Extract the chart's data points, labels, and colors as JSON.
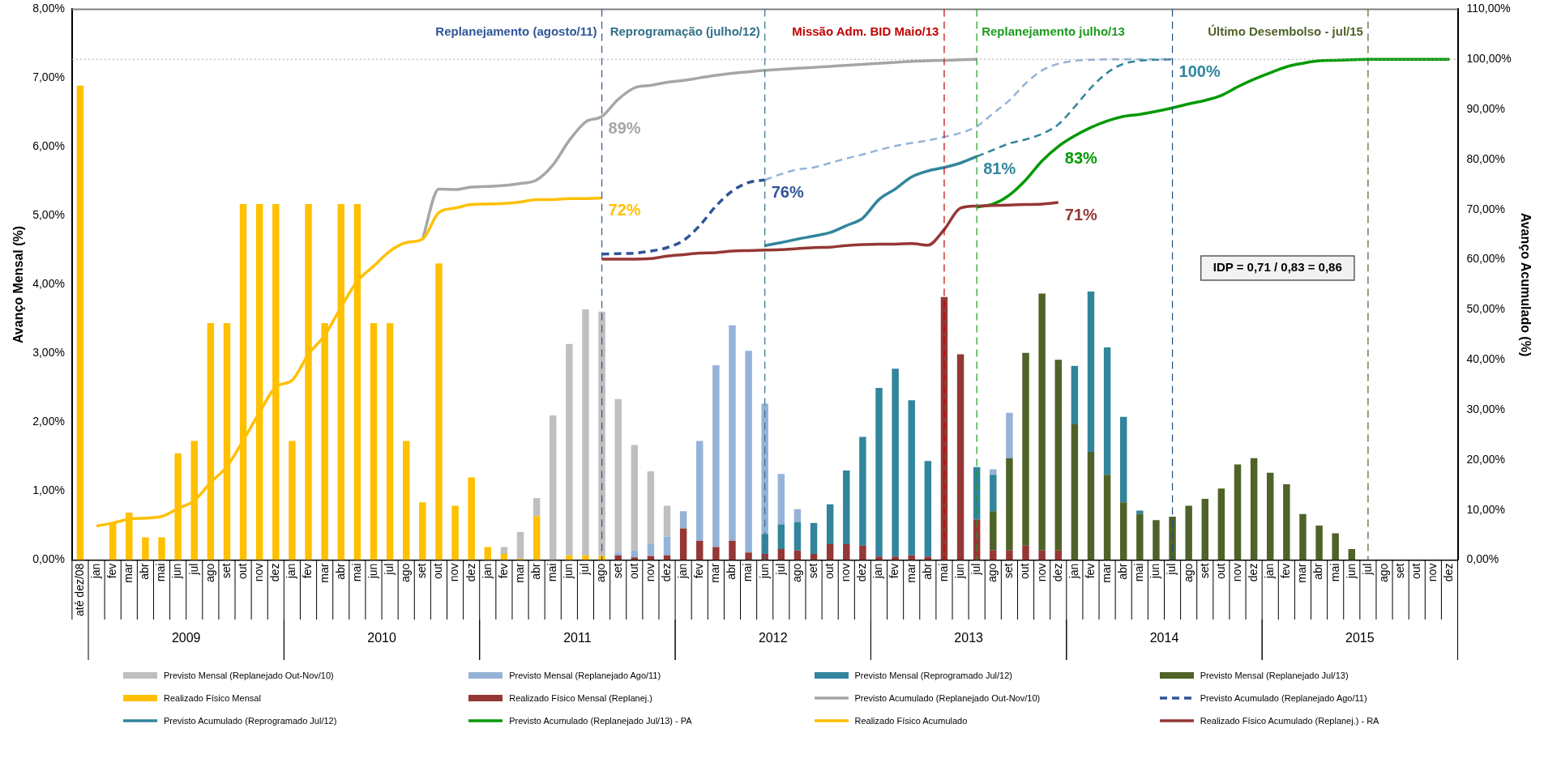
{
  "chart_data": {
    "type": "bar",
    "stacked": true,
    "ylabel": "Avanço Mensal (%)",
    "y2label": "Avanço Acumulado (%)",
    "ylim": [
      0,
      8
    ],
    "yticks": [
      {
        "value": 0,
        "label": "0,00%"
      },
      {
        "value": 1,
        "label": "1,00%"
      },
      {
        "value": 2,
        "label": "2,00%"
      },
      {
        "value": 3,
        "label": "3,00%"
      },
      {
        "value": 4,
        "label": "4,00%"
      },
      {
        "value": 5,
        "label": "5,00%"
      },
      {
        "value": 6,
        "label": "6,00%"
      },
      {
        "value": 7,
        "label": "7,00%"
      },
      {
        "value": 8,
        "label": "8,00%"
      }
    ],
    "y2lim": [
      0,
      110
    ],
    "y2ticks": [
      {
        "value": 0,
        "label": "0,00%"
      },
      {
        "value": 10,
        "label": "10,00%"
      },
      {
        "value": 20,
        "label": "20,00%"
      },
      {
        "value": 30,
        "label": "30,00%"
      },
      {
        "value": 40,
        "label": "40,00%"
      },
      {
        "value": 50,
        "label": "50,00%"
      },
      {
        "value": 60,
        "label": "60,00%"
      },
      {
        "value": 70,
        "label": "70,00%"
      },
      {
        "value": 80,
        "label": "80,00%"
      },
      {
        "value": 90,
        "label": "90,00%"
      },
      {
        "value": 100,
        "label": "100,00%"
      },
      {
        "value": 110,
        "label": "110,00%"
      }
    ],
    "xlim": [
      "2008-11-16",
      "2015-12-16"
    ],
    "x": [
      "2008-12",
      "2009-01",
      "2009-02",
      "2009-03",
      "2009-04",
      "2009-05",
      "2009-06",
      "2009-07",
      "2009-08",
      "2009-09",
      "2009-10",
      "2009-11",
      "2009-12",
      "2010-01",
      "2010-02",
      "2010-03",
      "2010-04",
      "2010-05",
      "2010-06",
      "2010-07",
      "2010-08",
      "2010-09",
      "2010-10",
      "2010-11",
      "2010-12",
      "2011-01",
      "2011-02",
      "2011-03",
      "2011-04",
      "2011-05",
      "2011-06",
      "2011-07",
      "2011-08",
      "2011-09",
      "2011-10",
      "2011-11",
      "2011-12",
      "2012-01",
      "2012-02",
      "2012-03",
      "2012-04",
      "2012-05",
      "2012-06",
      "2012-07",
      "2012-08",
      "2012-09",
      "2012-10",
      "2012-11",
      "2012-12",
      "2013-01",
      "2013-02",
      "2013-03",
      "2013-04",
      "2013-05",
      "2013-06",
      "2013-07",
      "2013-08",
      "2013-09",
      "2013-10",
      "2013-11",
      "2013-12",
      "2014-01",
      "2014-02",
      "2014-03",
      "2014-04",
      "2014-05",
      "2014-06",
      "2014-07",
      "2014-08",
      "2014-09",
      "2014-10",
      "2014-11",
      "2014-12",
      "2015-01",
      "2015-02",
      "2015-03",
      "2015-04",
      "2015-05",
      "2015-06"
    ],
    "xticks": [
      {
        "value": "2008-12",
        "label": "até dez/08"
      },
      {
        "value": "2009-01",
        "label": "jan"
      },
      {
        "value": "2009-02",
        "label": "fev"
      },
      {
        "value": "2009-03",
        "label": "mar"
      },
      {
        "value": "2009-04",
        "label": "abr"
      },
      {
        "value": "2009-05",
        "label": "mai"
      },
      {
        "value": "2009-06",
        "label": "jun"
      },
      {
        "value": "2009-07",
        "label": "jul"
      },
      {
        "value": "2009-08",
        "label": "ago"
      },
      {
        "value": "2009-09",
        "label": "set"
      },
      {
        "value": "2009-10",
        "label": "out"
      },
      {
        "value": "2009-11",
        "label": "nov"
      },
      {
        "value": "2009-12",
        "label": "dez"
      },
      {
        "value": "2010-01",
        "label": "jan"
      },
      {
        "value": "2010-02",
        "label": "fev"
      },
      {
        "value": "2010-03",
        "label": "mar"
      },
      {
        "value": "2010-04",
        "label": "abr"
      },
      {
        "value": "2010-05",
        "label": "mai"
      },
      {
        "value": "2010-06",
        "label": "jun"
      },
      {
        "value": "2010-07",
        "label": "jul"
      },
      {
        "value": "2010-08",
        "label": "ago"
      },
      {
        "value": "2010-09",
        "label": "set"
      },
      {
        "value": "2010-10",
        "label": "out"
      },
      {
        "value": "2010-11",
        "label": "nov"
      },
      {
        "value": "2010-12",
        "label": "dez"
      },
      {
        "value": "2011-01",
        "label": "jan"
      },
      {
        "value": "2011-02",
        "label": "fev"
      },
      {
        "value": "2011-03",
        "label": "mar"
      },
      {
        "value": "2011-04",
        "label": "abr"
      },
      {
        "value": "2011-05",
        "label": "mai"
      },
      {
        "value": "2011-06",
        "label": "jun"
      },
      {
        "value": "2011-07",
        "label": "jul"
      },
      {
        "value": "2011-08",
        "label": "ago"
      },
      {
        "value": "2011-09",
        "label": "set"
      },
      {
        "value": "2011-10",
        "label": "out"
      },
      {
        "value": "2011-11",
        "label": "nov"
      },
      {
        "value": "2011-12",
        "label": "dez"
      },
      {
        "value": "2012-01",
        "label": "jan"
      },
      {
        "value": "2012-02",
        "label": "fev"
      },
      {
        "value": "2012-03",
        "label": "mar"
      },
      {
        "value": "2012-04",
        "label": "abr"
      },
      {
        "value": "2012-05",
        "label": "mai"
      },
      {
        "value": "2012-06",
        "label": "jun"
      },
      {
        "value": "2012-07",
        "label": "jul"
      },
      {
        "value": "2012-08",
        "label": "ago"
      },
      {
        "value": "2012-09",
        "label": "set"
      },
      {
        "value": "2012-10",
        "label": "out"
      },
      {
        "value": "2012-11",
        "label": "nov"
      },
      {
        "value": "2012-12",
        "label": "dez"
      },
      {
        "value": "2013-01",
        "label": "jan"
      },
      {
        "value": "2013-02",
        "label": "fev"
      },
      {
        "value": "2013-03",
        "label": "mar"
      },
      {
        "value": "2013-04",
        "label": "abr"
      },
      {
        "value": "2013-05",
        "label": "mai"
      },
      {
        "value": "2013-06",
        "label": "jun"
      },
      {
        "value": "2013-07",
        "label": "jul"
      },
      {
        "value": "2013-08",
        "label": "ago"
      },
      {
        "value": "2013-09",
        "label": "set"
      },
      {
        "value": "2013-10",
        "label": "out"
      },
      {
        "value": "2013-11",
        "label": "nov"
      },
      {
        "value": "2013-12",
        "label": "dez"
      },
      {
        "value": "2014-01",
        "label": "jan"
      },
      {
        "value": "2014-02",
        "label": "fev"
      },
      {
        "value": "2014-03",
        "label": "mar"
      },
      {
        "value": "2014-04",
        "label": "abr"
      },
      {
        "value": "2014-05",
        "label": "mai"
      },
      {
        "value": "2014-06",
        "label": "jun"
      },
      {
        "value": "2014-07",
        "label": "jul"
      },
      {
        "value": "2014-08",
        "label": "ago"
      },
      {
        "value": "2014-09",
        "label": "set"
      },
      {
        "value": "2014-10",
        "label": "out"
      },
      {
        "value": "2014-11",
        "label": "nov"
      },
      {
        "value": "2014-12",
        "label": "dez"
      },
      {
        "value": "2015-01",
        "label": "jan"
      },
      {
        "value": "2015-02",
        "label": "fev"
      },
      {
        "value": "2015-03",
        "label": "mar"
      },
      {
        "value": "2015-04",
        "label": "abr"
      },
      {
        "value": "2015-05",
        "label": "mai"
      },
      {
        "value": "2015-06",
        "label": "jun"
      },
      {
        "value": "2015-07",
        "label": "jul"
      },
      {
        "value": "2015-08",
        "label": "ago"
      },
      {
        "value": "2015-09",
        "label": "set"
      },
      {
        "value": "2015-10",
        "label": "out"
      },
      {
        "value": "2015-11",
        "label": "nov"
      },
      {
        "value": "2015-12",
        "label": "dez"
      }
    ],
    "series": [
      {
        "name": "Realizado Físico Mensal (Replanej.)",
        "color": "#953735",
        "values": [
          null,
          null,
          null,
          null,
          null,
          null,
          null,
          null,
          null,
          null,
          null,
          null,
          null,
          null,
          null,
          null,
          null,
          null,
          null,
          null,
          null,
          null,
          null,
          null,
          null,
          null,
          null,
          null,
          null,
          null,
          null,
          null,
          null,
          0.07,
          0.04,
          0.06,
          0.07,
          0.46,
          0.28,
          0.19,
          0.28,
          0.11,
          0.09,
          0.16,
          0.14,
          0.09,
          0.23,
          0.23,
          0.21,
          0.05,
          0.05,
          0.07,
          0.05,
          3.82,
          2.99,
          0.59,
          0.14,
          0.14,
          0.21,
          0.14,
          0.14,
          null,
          null,
          null,
          null,
          null,
          null,
          null,
          null,
          null,
          null,
          null,
          null,
          null,
          null,
          null,
          null,
          null,
          null
        ]
      },
      {
        "name": "Realizado Físico Mensal",
        "color": "#ffc000",
        "values": [
          6.89,
          null,
          0.54,
          0.69,
          0.33,
          0.33,
          1.55,
          1.73,
          3.44,
          3.44,
          5.17,
          5.17,
          5.17,
          1.73,
          5.17,
          3.44,
          5.17,
          5.17,
          3.44,
          3.44,
          1.73,
          0.84,
          4.31,
          0.79,
          1.2,
          0.19,
          0.09,
          0.02,
          0.64,
          null,
          0.07,
          0.07,
          0.06,
          null,
          null,
          null,
          null,
          null,
          null,
          null,
          null,
          null,
          null,
          null,
          null,
          null,
          null,
          null,
          null,
          null,
          null,
          null,
          null,
          null,
          null,
          null,
          null,
          null,
          null,
          null,
          null,
          null,
          null,
          null,
          null,
          null,
          null,
          null,
          null,
          null,
          null,
          null,
          null,
          null,
          null,
          null,
          null,
          null,
          null
        ]
      },
      {
        "name": "Previsto Mensal (Replanejado Jul/13)",
        "color": "#4f6228",
        "values": [
          null,
          null,
          null,
          null,
          null,
          null,
          null,
          null,
          null,
          null,
          null,
          null,
          null,
          null,
          null,
          null,
          null,
          null,
          null,
          null,
          null,
          null,
          null,
          null,
          null,
          null,
          null,
          null,
          null,
          null,
          null,
          null,
          null,
          null,
          null,
          null,
          null,
          null,
          null,
          null,
          null,
          null,
          null,
          null,
          null,
          null,
          null,
          null,
          null,
          null,
          null,
          null,
          null,
          null,
          null,
          null,
          0.57,
          1.34,
          2.8,
          3.73,
          2.77,
          1.97,
          1.57,
          1.24,
          0.84,
          0.67,
          0.58,
          0.63,
          0.79,
          0.89,
          1.04,
          1.39,
          1.48,
          1.27,
          1.1,
          0.67,
          0.5,
          0.39,
          0.16
        ]
      },
      {
        "name": "Previsto Mensal (Reprogramado Jul/12)",
        "color": "#31859c",
        "values": [
          null,
          null,
          null,
          null,
          null,
          null,
          null,
          null,
          null,
          null,
          null,
          null,
          null,
          null,
          null,
          null,
          null,
          null,
          null,
          null,
          null,
          null,
          null,
          null,
          null,
          null,
          null,
          null,
          null,
          null,
          null,
          null,
          null,
          null,
          null,
          null,
          null,
          null,
          null,
          null,
          null,
          null,
          0.29,
          0.36,
          0.41,
          0.45,
          0.58,
          1.07,
          1.58,
          2.45,
          2.73,
          2.25,
          1.39,
          null,
          null,
          0.76,
          0.53,
          null,
          null,
          null,
          null,
          0.85,
          2.33,
          1.85,
          1.24,
          0.05,
          null,
          null,
          null,
          null,
          null,
          null,
          null,
          null,
          null,
          null,
          null,
          null,
          null
        ]
      },
      {
        "name": "Previsto Mensal (Replanejado Ago/11)",
        "color": "#95b3d7",
        "values": [
          null,
          null,
          null,
          null,
          null,
          null,
          null,
          null,
          null,
          null,
          null,
          null,
          null,
          null,
          null,
          null,
          null,
          null,
          null,
          null,
          null,
          null,
          null,
          null,
          null,
          null,
          null,
          null,
          null,
          null,
          null,
          null,
          null,
          0.04,
          0.1,
          0.17,
          0.27,
          0.25,
          1.45,
          2.64,
          3.13,
          2.93,
          1.89,
          0.73,
          0.19,
          null,
          null,
          null,
          null,
          null,
          null,
          null,
          null,
          null,
          null,
          null,
          0.08,
          0.66,
          null,
          null,
          null,
          null,
          null,
          null,
          null,
          null,
          null,
          null,
          null,
          null,
          null,
          null,
          null,
          null,
          null,
          null,
          null,
          null,
          null
        ]
      },
      {
        "name": "Previsto Mensal (Replanejado Out-Nov/10)",
        "color": "#bfbfbf",
        "values": [
          null,
          null,
          null,
          null,
          null,
          null,
          null,
          null,
          null,
          null,
          null,
          null,
          null,
          null,
          null,
          null,
          null,
          null,
          null,
          null,
          null,
          null,
          null,
          null,
          null,
          null,
          0.1,
          0.39,
          0.26,
          2.1,
          3.07,
          3.57,
          3.55,
          2.23,
          1.53,
          1.06,
          0.45,
          null,
          null,
          null,
          null,
          null,
          null,
          null,
          null,
          null,
          null,
          null,
          null,
          null,
          null,
          null,
          null,
          null,
          null,
          null,
          null,
          null,
          null,
          null,
          null,
          null,
          null,
          null,
          null,
          null,
          null,
          null,
          null,
          null,
          null,
          null,
          null,
          null,
          null,
          null,
          null,
          null,
          null
        ]
      },
      {
        "name": "Previsto Acumulado (Replanejado Out-Nov/10)",
        "type": "line",
        "axis": "y2",
        "color": "#a6a6a6",
        "x": [
          "2010-09",
          "2010-10",
          "2010-11",
          "2010-12",
          "2011-01",
          "2011-02",
          "2011-03",
          "2011-04",
          "2011-05",
          "2011-06",
          "2011-07",
          "2011-08",
          "2011-09",
          "2011-10",
          "2011-11",
          "2011-12",
          "2012-01",
          "2012-02",
          "2012-03",
          "2012-04",
          "2012-05",
          "2012-06",
          "2012-07",
          "2012-08",
          "2012-09",
          "2012-10",
          "2012-11",
          "2012-12",
          "2013-01",
          "2013-02",
          "2013-03",
          "2013-04",
          "2013-05",
          "2013-06",
          "2013-07"
        ],
        "values": [
          64.1,
          74.1,
          74.0,
          74.5,
          74.6,
          74.8,
          75.2,
          75.9,
          78.9,
          83.8,
          87.5,
          88.6,
          92.0,
          94.3,
          94.8,
          95.4,
          95.8,
          96.3,
          96.8,
          97.2,
          97.5,
          97.8,
          98.0,
          98.2,
          98.4,
          98.6,
          98.8,
          99.0,
          99.2,
          99.4,
          99.6,
          99.7,
          99.8,
          99.9,
          100
        ],
        "value_labels": [
          null,
          null,
          null,
          null,
          null,
          null,
          null,
          null,
          null,
          null,
          null,
          "89%",
          null,
          null,
          null,
          null,
          null,
          null,
          null,
          null,
          null,
          null,
          null,
          null,
          null,
          null,
          null,
          null,
          null,
          null,
          null,
          null,
          null,
          null,
          null
        ]
      },
      {
        "name": "Previsto Acumulado (Replanejado Ago/11)",
        "type": "line",
        "axis": "y2",
        "line_style": "dashed",
        "color": "#2f5597",
        "x": [
          "2011-08",
          "2011-09",
          "2011-10",
          "2011-11",
          "2011-12",
          "2012-01",
          "2012-02",
          "2012-03",
          "2012-04",
          "2012-05",
          "2012-06"
        ],
        "values": [
          61.1,
          61.2,
          61.3,
          61.7,
          62.4,
          63.8,
          66.8,
          70.7,
          73.7,
          75.4,
          75.9
        ],
        "value_labels": [
          null,
          null,
          null,
          null,
          null,
          null,
          null,
          null,
          null,
          null,
          "76%"
        ]
      },
      {
        "name": "Previsto Acumulado (Reprogramado Jul/12)",
        "type": "line",
        "axis": "y2",
        "color": "#31859c",
        "x": [
          "2012-06",
          "2012-07",
          "2012-08",
          "2012-09",
          "2012-10",
          "2012-11",
          "2012-12",
          "2013-01",
          "2013-02",
          "2013-03",
          "2013-04",
          "2013-05",
          "2013-06",
          "2013-07"
        ],
        "values": [
          62.8,
          63.4,
          64.1,
          64.7,
          65.4,
          66.8,
          68.3,
          72.0,
          74.1,
          76.5,
          77.7,
          78.4,
          79.3,
          80.6
        ],
        "value_labels": [
          null,
          null,
          null,
          null,
          null,
          null,
          null,
          null,
          null,
          null,
          null,
          null,
          null,
          "81%"
        ]
      },
      {
        "name": "Previsto Acumulado (Replanejado Jul/13) - PA",
        "type": "line",
        "axis": "y2",
        "color": "#009900",
        "x": [
          "2013-07",
          "2013-08",
          "2013-09",
          "2013-10",
          "2013-11",
          "2013-12",
          "2014-01",
          "2014-02",
          "2014-03",
          "2014-04",
          "2014-05",
          "2014-06",
          "2014-07",
          "2014-08",
          "2014-09",
          "2014-10",
          "2014-11",
          "2014-12",
          "2015-01",
          "2015-02",
          "2015-03",
          "2015-04",
          "2015-05",
          "2015-06",
          "2015-07",
          "2015-08",
          "2015-09",
          "2015-10",
          "2015-11",
          "2015-12"
        ],
        "values": [
          70.5,
          71.1,
          72.9,
          75.9,
          79.7,
          82.6,
          84.7,
          86.4,
          87.7,
          88.6,
          89.0,
          89.6,
          90.3,
          91.1,
          91.8,
          92.8,
          94.5,
          96.0,
          97.3,
          98.5,
          99.2,
          99.7,
          99.8,
          99.9,
          100,
          100,
          100,
          100,
          100,
          100
        ],
        "value_labels": [
          null,
          null,
          null,
          null,
          null,
          "83%",
          null,
          null,
          null,
          null,
          null,
          null,
          null,
          null,
          null,
          null,
          null,
          null,
          null,
          null,
          null,
          null,
          null,
          null,
          null,
          null,
          null,
          null,
          null,
          null
        ]
      },
      {
        "name": "Realizado Físico Acumulado",
        "type": "line",
        "axis": "y2",
        "color": "#ffc000",
        "x": [
          "2009-01",
          "2009-02",
          "2009-03",
          "2009-04",
          "2009-05",
          "2009-06",
          "2009-07",
          "2009-08",
          "2009-09",
          "2009-10",
          "2009-11",
          "2009-12",
          "2010-01",
          "2010-02",
          "2010-03",
          "2010-04",
          "2010-05",
          "2010-06",
          "2010-07",
          "2010-08",
          "2010-09",
          "2010-10",
          "2010-11",
          "2010-12",
          "2011-01",
          "2011-02",
          "2011-03",
          "2011-04",
          "2011-05",
          "2011-06",
          "2011-07",
          "2011-08"
        ],
        "values": [
          6.8,
          7.4,
          8.2,
          8.4,
          8.7,
          10.3,
          11.9,
          15.5,
          18.7,
          23.9,
          29.5,
          34.6,
          35.9,
          41.1,
          44.9,
          50.5,
          55.7,
          58.7,
          61.7,
          63.4,
          64.1,
          69.4,
          70.3,
          71.0,
          71.1,
          71.2,
          71.5,
          72.0,
          72.0,
          72.2,
          72.2,
          72.3
        ],
        "value_labels": [
          null,
          null,
          null,
          null,
          null,
          null,
          null,
          null,
          null,
          null,
          null,
          null,
          null,
          null,
          null,
          null,
          null,
          null,
          null,
          null,
          null,
          null,
          null,
          null,
          null,
          null,
          null,
          null,
          null,
          null,
          null,
          "72%"
        ]
      },
      {
        "name": "Realizado Físico Acumulado (Replanej.) - RA",
        "type": "line",
        "axis": "y2",
        "color": "#953735",
        "x": [
          "2011-08",
          "2011-09",
          "2011-10",
          "2011-11",
          "2011-12",
          "2012-01",
          "2012-02",
          "2012-03",
          "2012-04",
          "2012-05",
          "2012-06",
          "2012-07",
          "2012-08",
          "2012-09",
          "2012-10",
          "2012-11",
          "2012-12",
          "2013-01",
          "2013-02",
          "2013-03",
          "2013-04",
          "2013-05",
          "2013-06",
          "2013-07",
          "2013-08",
          "2013-09",
          "2013-10",
          "2013-11",
          "2013-12"
        ],
        "values": [
          60.1,
          60.1,
          60.1,
          60.2,
          60.7,
          61.0,
          61.3,
          61.4,
          61.7,
          61.8,
          61.9,
          62.0,
          62.2,
          62.4,
          62.5,
          62.8,
          63.0,
          63.1,
          63.1,
          63.2,
          62.9,
          66.0,
          70.3,
          70.7,
          70.8,
          70.9,
          71.0,
          71.1,
          71.4
        ],
        "value_labels": [
          null,
          null,
          null,
          null,
          null,
          null,
          null,
          null,
          null,
          null,
          null,
          null,
          null,
          null,
          null,
          null,
          null,
          null,
          null,
          null,
          null,
          null,
          null,
          null,
          null,
          null,
          null,
          null,
          "71%"
        ]
      },
      {
        "type": "line",
        "axis": "y2",
        "line_style": "dashed",
        "color": "#95b3d7",
        "x": [
          "2012-06",
          "2012-07",
          "2012-08",
          "2012-09",
          "2012-10",
          "2012-11",
          "2012-12",
          "2013-01",
          "2013-02",
          "2013-03",
          "2013-04",
          "2013-05",
          "2013-06",
          "2013-07",
          "2013-08",
          "2013-09",
          "2013-10",
          "2013-11",
          "2013-12",
          "2014-01",
          "2014-02",
          "2014-03",
          "2014-04",
          "2014-05",
          "2014-06",
          "2014-07"
        ],
        "values": [
          75.9,
          77.1,
          78.0,
          78.4,
          79.3,
          80.2,
          81.0,
          81.9,
          82.7,
          83.3,
          83.8,
          84.5,
          85.3,
          86.6,
          89.2,
          91.8,
          95.2,
          97.8,
          99.1,
          99.7,
          99.9,
          100,
          100,
          100,
          100,
          100
        ]
      },
      {
        "type": "line",
        "axis": "y2",
        "line_style": "dashed",
        "color": "#31859c",
        "x": [
          "2013-07",
          "2013-08",
          "2013-09",
          "2013-10",
          "2013-11",
          "2013-12",
          "2014-01",
          "2014-02",
          "2014-03",
          "2014-04",
          "2014-05",
          "2014-06",
          "2014-07"
        ],
        "values": [
          80.6,
          81.9,
          83.2,
          84.0,
          85.1,
          87.0,
          90.5,
          94.3,
          97.3,
          99.1,
          99.7,
          99.9,
          100
        ],
        "value_labels": [
          null,
          null,
          null,
          null,
          null,
          null,
          null,
          null,
          null,
          null,
          null,
          null,
          "100%"
        ]
      }
    ],
    "ref_lines": [
      {
        "axis": "x",
        "value": "2011-08",
        "label": "Replanejamento (agosto/11)",
        "color": "#2f5597",
        "line_style": "dashed"
      },
      {
        "axis": "x",
        "value": "2013-05",
        "label": "Missão Adm. BID Maio/13",
        "color": "#c00000",
        "line_style": "dashed"
      },
      {
        "axis": "x",
        "value": "2013-07",
        "label": "Replanejamento julho/13",
        "color": "#1e9a1e",
        "line_style": "dashed"
      },
      {
        "axis": "x",
        "value": "2015-07",
        "label": "Último Desembolso - jul/15",
        "color": "#4f6228",
        "line_style": "dashed"
      },
      {
        "axis": "x",
        "value": "2012-06",
        "label": "Reprogramação (julho/12)",
        "color": "#31708a",
        "line_style": "dashed"
      },
      {
        "axis": "x",
        "value": "2014-07",
        "color": "#1f4e79",
        "line_style": "dashed"
      },
      {
        "axis": "y2",
        "value": 100,
        "color": "#a6a6a6",
        "line_style": "dotted"
      }
    ],
    "annotations": [
      "2009",
      "2010",
      "2011",
      "2012",
      "2013",
      "2014",
      "2015",
      "IDP = 0,71 / 0,83 = 0,86"
    ],
    "legend": "bottom",
    "marker": "none"
  }
}
